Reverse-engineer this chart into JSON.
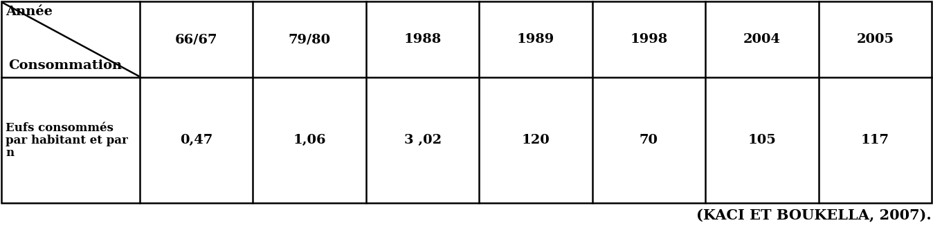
{
  "years": [
    "66/67",
    "79/80",
    "1988",
    "1989",
    "1998",
    "2004",
    "2005"
  ],
  "values": [
    "0,47",
    "1,06",
    "3 ,02",
    "120",
    "70",
    "105",
    "117"
  ],
  "row_label_lines": [
    "Eufs consommés",
    "par habitant et par",
    "n"
  ],
  "header_diagonal_top": "Année",
  "header_diagonal_bottom": "Consommation",
  "citation": "(KACI ET BOUKELLA, 2007).",
  "bg_color": "#ffffff",
  "text_color": "#000000",
  "font_size_header": 14,
  "font_size_cell": 14,
  "font_size_row_label": 12,
  "font_size_citation": 15,
  "fig_width": 13.48,
  "fig_height": 3.52,
  "dpi": 100
}
